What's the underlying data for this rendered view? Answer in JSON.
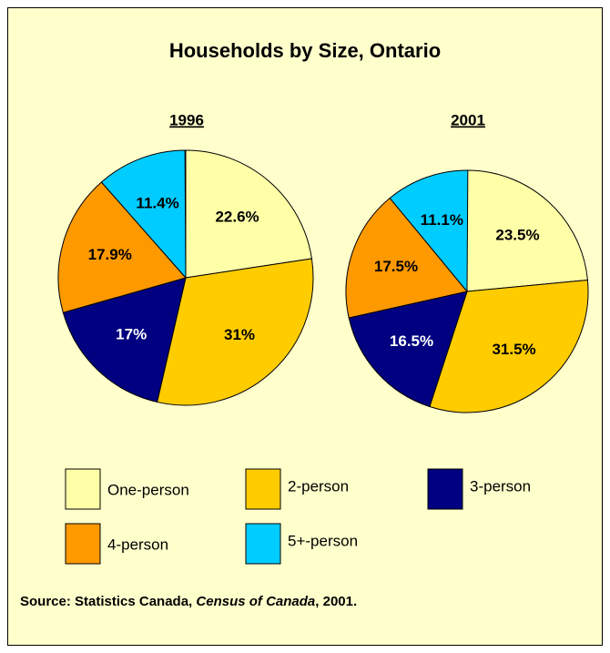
{
  "title": "Households by Size, Ontario",
  "source": {
    "prefix": "Source: Statistics Canada, ",
    "italic": "Census of Canada",
    "suffix": ", 2001."
  },
  "legend": {
    "categories": [
      "One-person",
      "2-person",
      "3-person",
      "4-person",
      "5+-person"
    ],
    "colors": [
      "#ffffa8",
      "#ffcc00",
      "#000080",
      "#ff9900",
      "#00ccff"
    ]
  },
  "chart_data": [
    {
      "type": "pie",
      "title": "1996",
      "values": [
        22.6,
        31,
        17,
        17.9,
        11.4
      ],
      "value_labels": [
        "22.6%",
        "31%",
        "17%",
        "17.9%",
        "11.4%"
      ]
    },
    {
      "type": "pie",
      "title": "2001",
      "values": [
        23.5,
        31.5,
        16.5,
        17.5,
        11.1
      ],
      "value_labels": [
        "23.5%",
        "31.5%",
        "16.5%",
        "17.5%",
        "11.1%"
      ]
    }
  ]
}
